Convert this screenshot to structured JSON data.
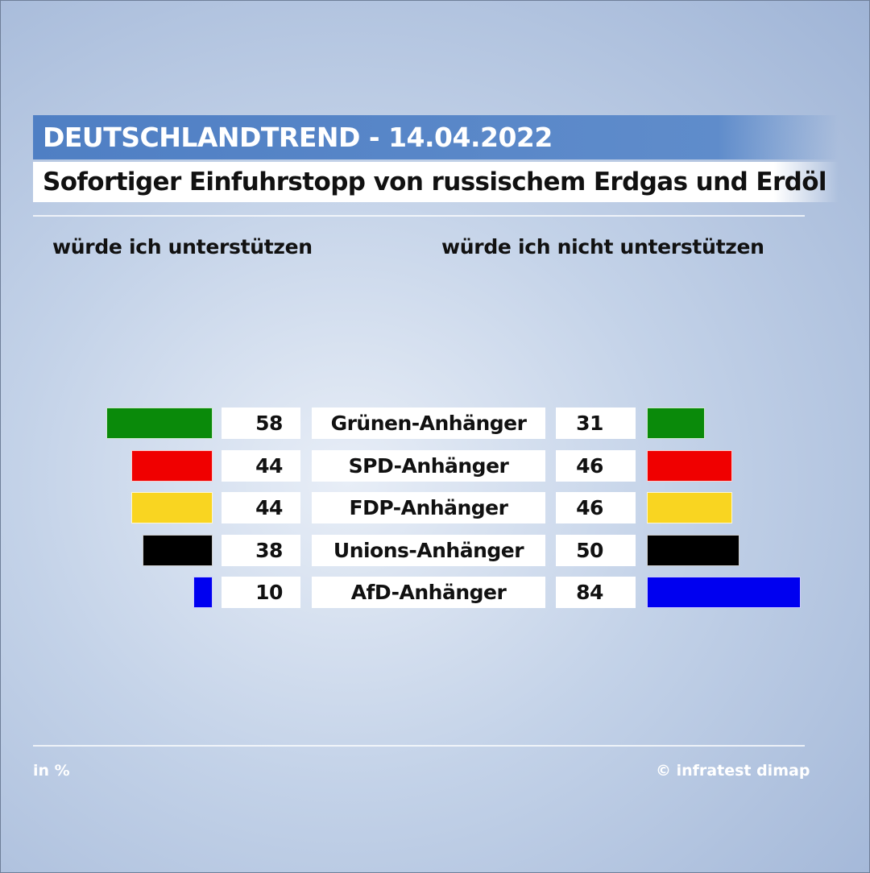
{
  "chart_data": {
    "type": "bar",
    "title": "DEUTSCHLANDTREND - 14.04.2022",
    "subtitle": "Sofortiger Einfuhrstopp von russischem Erdgas und Erdöl",
    "categories": [
      "Grünen-Anhänger",
      "SPD-Anhänger",
      "FDP-Anhänger",
      "Unions-Anhänger",
      "AfD-Anhänger"
    ],
    "colors": [
      "#0a8a0a",
      "#f00000",
      "#f9d521",
      "#000000",
      "#0000f0"
    ],
    "series": [
      {
        "name": "würde ich unterstützen",
        "values": [
          58,
          44,
          44,
          38,
          10
        ]
      },
      {
        "name": "würde ich nicht unterstützen",
        "values": [
          31,
          46,
          46,
          50,
          84
        ]
      }
    ],
    "unit_note": "in %",
    "source": "© infratest dimap",
    "orientation": "horizontal-diverging"
  }
}
